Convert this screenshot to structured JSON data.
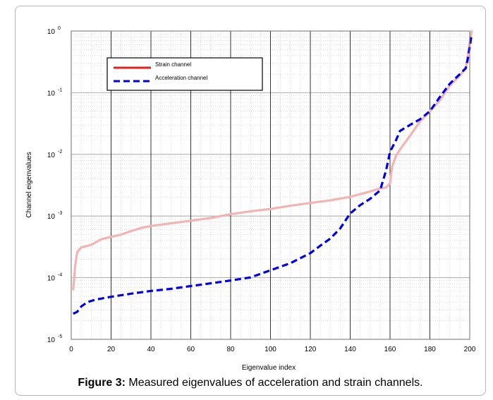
{
  "figure": {
    "caption_label": "Figure 3:",
    "caption_text": " Measured eigenvalues of acceleration and strain channels."
  },
  "chart_data": {
    "type": "line",
    "xlabel": "Eigenvalue index",
    "ylabel": "Channel eigenvalues",
    "xlim": [
      0,
      200
    ],
    "ylim": [
      1e-05,
      1
    ],
    "y_scale": "log",
    "x_ticks": [
      0,
      20,
      40,
      60,
      80,
      100,
      120,
      140,
      160,
      180,
      200
    ],
    "y_ticks": [
      {
        "value": 1e-05,
        "base": "10",
        "exp": "-5"
      },
      {
        "value": 0.0001,
        "base": "10",
        "exp": "-4"
      },
      {
        "value": 0.001,
        "base": "10",
        "exp": "-3"
      },
      {
        "value": 0.01,
        "base": "10",
        "exp": "-2"
      },
      {
        "value": 0.1,
        "base": "10",
        "exp": "-1"
      },
      {
        "value": 1,
        "base": "10",
        "exp": "0"
      }
    ],
    "grid": true,
    "legend_position": "top-left",
    "series": [
      {
        "name": "Strain channel",
        "legend_color": "#e8211b",
        "line_color": "#f4b3b3",
        "dash": "solid",
        "points": [
          [
            1,
            6.5e-05
          ],
          [
            2,
            0.00016
          ],
          [
            3,
            0.00026
          ],
          [
            5,
            0.00031
          ],
          [
            10,
            0.00034
          ],
          [
            15,
            0.00042
          ],
          [
            20,
            0.00046
          ],
          [
            25,
            0.0005
          ],
          [
            30,
            0.00057
          ],
          [
            35,
            0.00064
          ],
          [
            40,
            0.00069
          ],
          [
            50,
            0.00076
          ],
          [
            60,
            0.00084
          ],
          [
            70,
            0.00093
          ],
          [
            80,
            0.00107
          ],
          [
            90,
            0.00119
          ],
          [
            100,
            0.0013
          ],
          [
            110,
            0.00147
          ],
          [
            120,
            0.00163
          ],
          [
            130,
            0.0018
          ],
          [
            140,
            0.00205
          ],
          [
            150,
            0.0025
          ],
          [
            155,
            0.0028
          ],
          [
            158,
            0.0029
          ],
          [
            160,
            0.0034
          ],
          [
            161,
            0.0062
          ],
          [
            163,
            0.0095
          ],
          [
            165,
            0.012
          ],
          [
            170,
            0.02
          ],
          [
            175,
            0.034
          ],
          [
            180,
            0.05
          ],
          [
            185,
            0.075
          ],
          [
            190,
            0.13
          ],
          [
            195,
            0.19
          ],
          [
            198,
            0.25
          ],
          [
            199,
            0.4
          ],
          [
            200,
            0.65
          ],
          [
            201,
            1.0
          ]
        ]
      },
      {
        "name": "Acceleration channel",
        "legend_color": "#0000e8",
        "line_color": "#0000e8",
        "dash": "dashed",
        "points": [
          [
            1,
            2.6e-05
          ],
          [
            3,
            2.8e-05
          ],
          [
            5,
            3.4e-05
          ],
          [
            8,
            4e-05
          ],
          [
            12,
            4.4e-05
          ],
          [
            20,
            4.9e-05
          ],
          [
            30,
            5.5e-05
          ],
          [
            40,
            6.1e-05
          ],
          [
            50,
            6.6e-05
          ],
          [
            60,
            7.3e-05
          ],
          [
            70,
            8.1e-05
          ],
          [
            80,
            9e-05
          ],
          [
            90,
            0.000101
          ],
          [
            100,
            0.000132
          ],
          [
            110,
            0.000172
          ],
          [
            120,
            0.00025
          ],
          [
            125,
            0.00033
          ],
          [
            130,
            0.00043
          ],
          [
            135,
            0.00063
          ],
          [
            140,
            0.0011
          ],
          [
            145,
            0.0015
          ],
          [
            150,
            0.0019
          ],
          [
            155,
            0.0026
          ],
          [
            158,
            0.0055
          ],
          [
            160,
            0.011
          ],
          [
            163,
            0.017
          ],
          [
            165,
            0.024
          ],
          [
            170,
            0.03
          ],
          [
            175,
            0.037
          ],
          [
            180,
            0.05
          ],
          [
            185,
            0.085
          ],
          [
            190,
            0.14
          ],
          [
            195,
            0.2
          ],
          [
            198,
            0.25
          ],
          [
            199,
            0.35
          ],
          [
            200,
            0.55
          ],
          [
            201,
            0.9
          ]
        ]
      }
    ]
  }
}
